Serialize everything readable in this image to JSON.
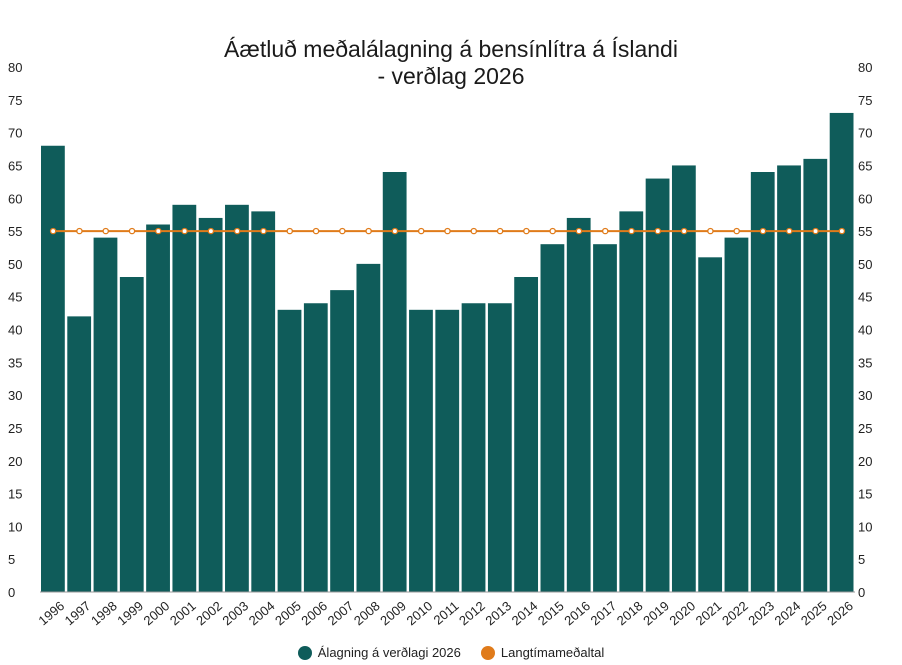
{
  "chart_data": {
    "type": "bar",
    "title_line1": "Áætluð meðalálagning á bensínlítra á Íslandi",
    "title_line2": "- verðlag 2026",
    "categories": [
      "1996",
      "1997",
      "1998",
      "1999",
      "2000",
      "2001",
      "2002",
      "2003",
      "2004",
      "2005",
      "2006",
      "2007",
      "2008",
      "2009",
      "2010",
      "2011",
      "2012",
      "2013",
      "2014",
      "2015",
      "2016",
      "2017",
      "2018",
      "2019",
      "2020",
      "2021",
      "2022",
      "2023",
      "2024",
      "2025",
      "2026"
    ],
    "series": [
      {
        "name": "Álagning á verðlagi 2026",
        "type": "bar",
        "color": "#0f5c5a",
        "values": [
          68,
          42,
          54,
          48,
          56,
          59,
          57,
          59,
          58,
          43,
          44,
          46,
          50,
          64,
          43,
          43,
          44,
          44,
          48,
          53,
          57,
          53,
          58,
          63,
          65,
          51,
          54,
          64,
          65,
          66,
          73
        ]
      },
      {
        "name": "Langtímameðaltal",
        "type": "line",
        "color": "#e07b1a",
        "values": [
          55,
          55,
          55,
          55,
          55,
          55,
          55,
          55,
          55,
          55,
          55,
          55,
          55,
          55,
          55,
          55,
          55,
          55,
          55,
          55,
          55,
          55,
          55,
          55,
          55,
          55,
          55,
          55,
          55,
          55,
          55
        ]
      }
    ],
    "ylim": [
      0,
      80
    ],
    "yticks": [
      "0",
      "5",
      "10",
      "15",
      "20",
      "25",
      "30",
      "35",
      "40",
      "45",
      "50",
      "55",
      "60",
      "65",
      "70",
      "75",
      "80"
    ],
    "y_axis_right": true,
    "legend_position": "bottom"
  }
}
